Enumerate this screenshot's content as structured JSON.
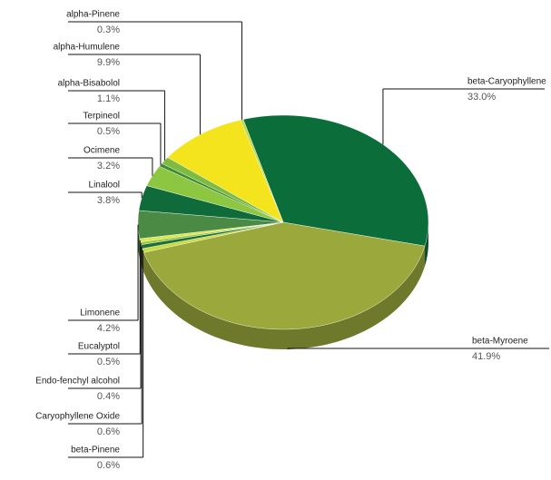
{
  "chart_data": {
    "type": "pie",
    "categories": [
      "beta-Caryophyllene",
      "beta-Myroene",
      "beta-Pinene",
      "Caryophyllene Oxide",
      "Endo-fenchyl alcohol",
      "Eucalyptol",
      "Limonene",
      "Linalool",
      "Ocimene",
      "Terpineol",
      "alpha-Bisabolol",
      "alpha-Humulene",
      "alpha-Pinene"
    ],
    "values": [
      33.0,
      41.9,
      0.6,
      0.6,
      0.4,
      0.5,
      4.2,
      3.8,
      3.2,
      0.5,
      1.1,
      9.9,
      0.3
    ],
    "value_labels": [
      "33.0%",
      "41.9%",
      "0.6%",
      "0.6%",
      "0.4%",
      "0.5%",
      "4.2%",
      "3.8%",
      "3.2%",
      "0.5%",
      "1.1%",
      "9.9%",
      "0.3%"
    ],
    "colors": [
      "#0b6e3a",
      "#9aa83c",
      "#c9dc3c",
      "#1d6f3c",
      "#9cc63c",
      "#d8e84a",
      "#4a8a44",
      "#0f6c3a",
      "#8dc641",
      "#3f8c32",
      "#7dbb41",
      "#f3e41e",
      "#b9d84c"
    ]
  }
}
